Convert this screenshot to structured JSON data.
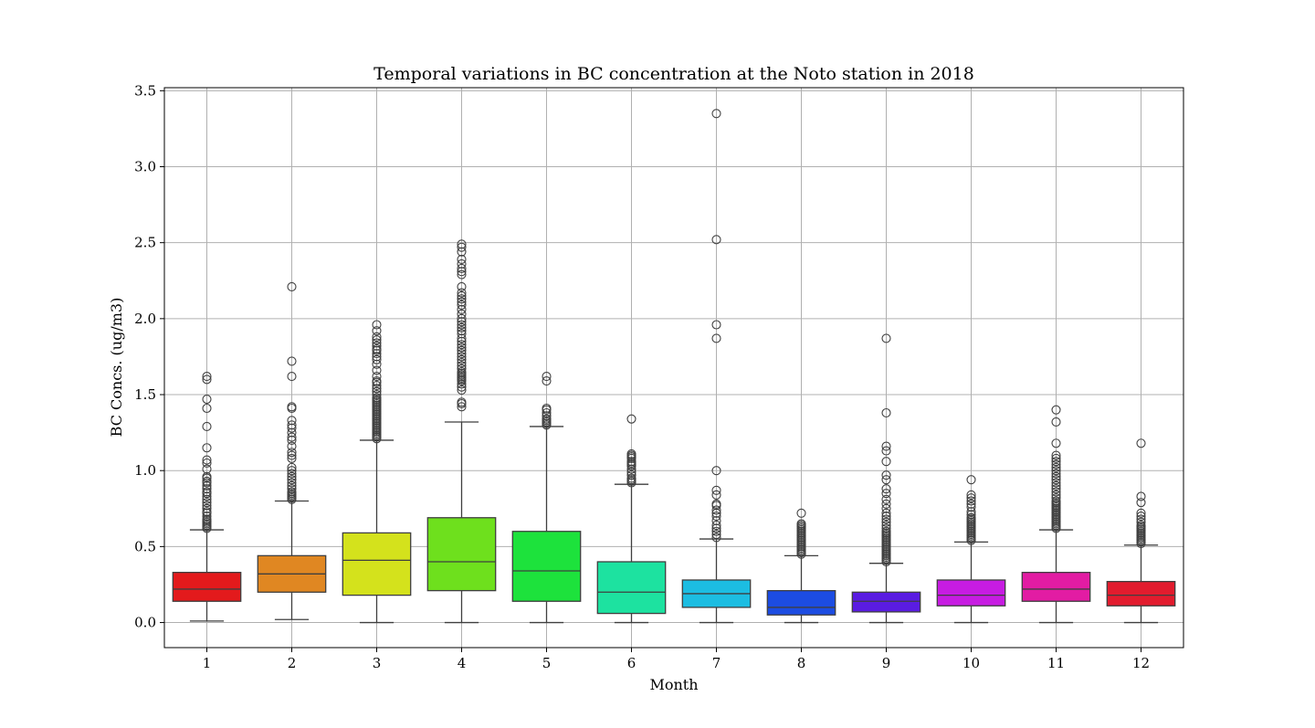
{
  "chart_data": {
    "type": "box",
    "title": "Temporal variations in BC concentration at the Noto station in 2018",
    "xlabel": "Month",
    "ylabel": "BC Concs. (ug/m3)",
    "ylim": [
      -0.165,
      3.52
    ],
    "yticks": [
      0.0,
      0.5,
      1.0,
      1.5,
      2.0,
      2.5,
      3.0,
      3.5
    ],
    "ytick_labels": [
      "0.0",
      "0.5",
      "1.0",
      "1.5",
      "2.0",
      "2.5",
      "3.0",
      "3.5"
    ],
    "grid": true,
    "categories": [
      "1",
      "2",
      "3",
      "4",
      "5",
      "6",
      "7",
      "8",
      "9",
      "10",
      "11",
      "12"
    ],
    "boxes": [
      {
        "month": "1",
        "color": "#e31a1c",
        "whisker_low": 0.01,
        "q1": 0.14,
        "median": 0.22,
        "q3": 0.33,
        "whisker_high": 0.61,
        "fliers": [
          0.62,
          0.63,
          0.64,
          0.65,
          0.66,
          0.67,
          0.68,
          0.7,
          0.72,
          0.73,
          0.75,
          0.77,
          0.79,
          0.81,
          0.83,
          0.85,
          0.86,
          0.88,
          0.9,
          0.92,
          0.93,
          0.95,
          0.96,
          1.01,
          1.05,
          1.07,
          1.15,
          1.29,
          1.41,
          1.47,
          1.6,
          1.62
        ]
      },
      {
        "month": "2",
        "color": "#e08722",
        "whisker_low": 0.02,
        "q1": 0.2,
        "median": 0.32,
        "q3": 0.44,
        "whisker_high": 0.8,
        "fliers": [
          0.81,
          0.82,
          0.83,
          0.84,
          0.85,
          0.86,
          0.88,
          0.9,
          0.92,
          0.94,
          0.96,
          0.98,
          1.0,
          1.02,
          1.08,
          1.1,
          1.12,
          1.16,
          1.2,
          1.22,
          1.25,
          1.28,
          1.3,
          1.33,
          1.41,
          1.42,
          1.62,
          1.72,
          2.21
        ]
      },
      {
        "month": "3",
        "color": "#d4e21c",
        "whisker_low": 0.0,
        "q1": 0.18,
        "median": 0.41,
        "q3": 0.59,
        "whisker_high": 1.2,
        "fliers": [
          1.21,
          1.22,
          1.23,
          1.24,
          1.25,
          1.26,
          1.27,
          1.28,
          1.29,
          1.3,
          1.31,
          1.32,
          1.33,
          1.34,
          1.35,
          1.36,
          1.37,
          1.38,
          1.39,
          1.4,
          1.41,
          1.42,
          1.43,
          1.44,
          1.45,
          1.46,
          1.47,
          1.48,
          1.5,
          1.52,
          1.54,
          1.56,
          1.58,
          1.59,
          1.62,
          1.66,
          1.7,
          1.73,
          1.75,
          1.77,
          1.79,
          1.8,
          1.82,
          1.84,
          1.86,
          1.88,
          1.92,
          1.96
        ]
      },
      {
        "month": "4",
        "color": "#6ee01d",
        "whisker_low": 0.0,
        "q1": 0.21,
        "median": 0.4,
        "q3": 0.69,
        "whisker_high": 1.32,
        "fliers": [
          1.42,
          1.44,
          1.45,
          1.53,
          1.55,
          1.57,
          1.59,
          1.6,
          1.61,
          1.62,
          1.63,
          1.64,
          1.65,
          1.67,
          1.69,
          1.71,
          1.73,
          1.75,
          1.77,
          1.79,
          1.81,
          1.83,
          1.85,
          1.87,
          1.9,
          1.92,
          1.94,
          1.96,
          1.98,
          2.0,
          2.03,
          2.06,
          2.09,
          2.11,
          2.13,
          2.15,
          2.17,
          2.21,
          2.29,
          2.31,
          2.33,
          2.36,
          2.39,
          2.44,
          2.47,
          2.49
        ]
      },
      {
        "month": "5",
        "color": "#1de23c",
        "whisker_low": 0.0,
        "q1": 0.14,
        "median": 0.34,
        "q3": 0.6,
        "whisker_high": 1.29,
        "fliers": [
          1.3,
          1.31,
          1.32,
          1.33,
          1.34,
          1.36,
          1.38,
          1.4,
          1.41,
          1.59,
          1.62
        ]
      },
      {
        "month": "6",
        "color": "#1de2a0",
        "whisker_low": 0.0,
        "q1": 0.06,
        "median": 0.2,
        "q3": 0.4,
        "whisker_high": 0.91,
        "fliers": [
          0.92,
          0.93,
          0.94,
          0.95,
          0.97,
          0.99,
          1.01,
          1.03,
          1.04,
          1.05,
          1.06,
          1.08,
          1.09,
          1.1,
          1.11,
          1.34
        ]
      },
      {
        "month": "7",
        "color": "#1cbde2",
        "whisker_low": 0.0,
        "q1": 0.1,
        "median": 0.19,
        "q3": 0.28,
        "whisker_high": 0.55,
        "fliers": [
          0.56,
          0.58,
          0.6,
          0.62,
          0.64,
          0.67,
          0.7,
          0.72,
          0.74,
          0.77,
          0.78,
          0.84,
          0.87,
          1.0,
          1.87,
          1.96,
          2.52,
          3.35
        ]
      },
      {
        "month": "8",
        "color": "#1c4ce2",
        "whisker_low": 0.0,
        "q1": 0.05,
        "median": 0.1,
        "q3": 0.21,
        "whisker_high": 0.44,
        "fliers": [
          0.45,
          0.46,
          0.47,
          0.48,
          0.49,
          0.5,
          0.51,
          0.52,
          0.53,
          0.54,
          0.55,
          0.56,
          0.57,
          0.58,
          0.59,
          0.6,
          0.61,
          0.62,
          0.63,
          0.64,
          0.65,
          0.72
        ]
      },
      {
        "month": "9",
        "color": "#5a1ce2",
        "whisker_low": 0.0,
        "q1": 0.07,
        "median": 0.14,
        "q3": 0.2,
        "whisker_high": 0.39,
        "fliers": [
          0.4,
          0.41,
          0.42,
          0.43,
          0.44,
          0.45,
          0.46,
          0.47,
          0.48,
          0.49,
          0.5,
          0.51,
          0.52,
          0.53,
          0.54,
          0.55,
          0.56,
          0.57,
          0.58,
          0.59,
          0.6,
          0.62,
          0.64,
          0.66,
          0.68,
          0.7,
          0.72,
          0.75,
          0.78,
          0.81,
          0.85,
          0.88,
          0.94,
          0.97,
          1.06,
          1.13,
          1.16,
          1.38,
          1.87
        ]
      },
      {
        "month": "10",
        "color": "#c71ce2",
        "whisker_low": 0.0,
        "q1": 0.11,
        "median": 0.18,
        "q3": 0.28,
        "whisker_high": 0.53,
        "fliers": [
          0.54,
          0.55,
          0.56,
          0.57,
          0.58,
          0.59,
          0.6,
          0.61,
          0.62,
          0.63,
          0.64,
          0.65,
          0.66,
          0.67,
          0.68,
          0.69,
          0.71,
          0.73,
          0.76,
          0.78,
          0.8,
          0.82,
          0.84,
          0.94
        ]
      },
      {
        "month": "11",
        "color": "#e21ca3",
        "whisker_low": 0.0,
        "q1": 0.14,
        "median": 0.22,
        "q3": 0.33,
        "whisker_high": 0.61,
        "fliers": [
          0.62,
          0.63,
          0.64,
          0.65,
          0.66,
          0.67,
          0.68,
          0.69,
          0.7,
          0.71,
          0.72,
          0.73,
          0.74,
          0.75,
          0.76,
          0.77,
          0.78,
          0.79,
          0.8,
          0.82,
          0.84,
          0.86,
          0.88,
          0.9,
          0.92,
          0.94,
          0.96,
          0.98,
          1.0,
          1.02,
          1.04,
          1.06,
          1.08,
          1.1,
          1.18,
          1.32,
          1.4
        ]
      },
      {
        "month": "12",
        "color": "#e21c2e",
        "whisker_low": 0.0,
        "q1": 0.11,
        "median": 0.18,
        "q3": 0.27,
        "whisker_high": 0.51,
        "fliers": [
          0.52,
          0.53,
          0.54,
          0.55,
          0.56,
          0.57,
          0.58,
          0.59,
          0.6,
          0.61,
          0.62,
          0.63,
          0.64,
          0.66,
          0.68,
          0.7,
          0.72,
          0.79,
          0.83,
          1.18
        ]
      }
    ]
  }
}
